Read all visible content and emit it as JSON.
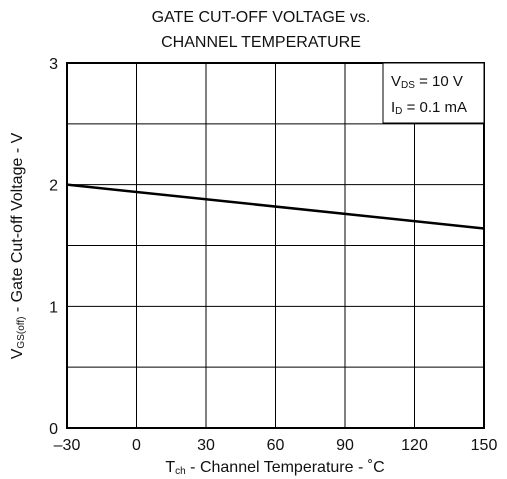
{
  "chart_data": {
    "type": "line",
    "title_line1": "GATE CUT-OFF VOLTAGE vs.",
    "title_line2": "CHANNEL TEMPERATURE",
    "xlabel_pre": "T",
    "xlabel_sub": "ch",
    "xlabel_post": " - Channel Temperature - ˚C",
    "ylabel_pre": "V",
    "ylabel_sub": "GS(off)",
    "ylabel_post": " - Gate Cut-off Voltage - V",
    "xlim": [
      -30,
      150
    ],
    "ylim": [
      0,
      3
    ],
    "x_ticks": [
      -30,
      0,
      30,
      60,
      90,
      120,
      150
    ],
    "x_tick_labels": [
      "–30",
      "0",
      "30",
      "60",
      "90",
      "120",
      "150"
    ],
    "y_ticks": [
      0,
      1,
      2,
      3
    ],
    "y_tick_labels": [
      "0",
      "1",
      "2",
      "3"
    ],
    "y_grid_minor": [
      0.5,
      1.5,
      2.5
    ],
    "grid": true,
    "series": [
      {
        "x": [
          -30,
          150
        ],
        "y": [
          2.0,
          1.64
        ]
      }
    ],
    "conditions": {
      "line1_pre": "V",
      "line1_sub": "DS",
      "line1_post": " = 10 V",
      "line2_pre": "I",
      "line2_sub": "D",
      "line2_post": " = 0.1 mA",
      "placement": "top-right"
    }
  }
}
